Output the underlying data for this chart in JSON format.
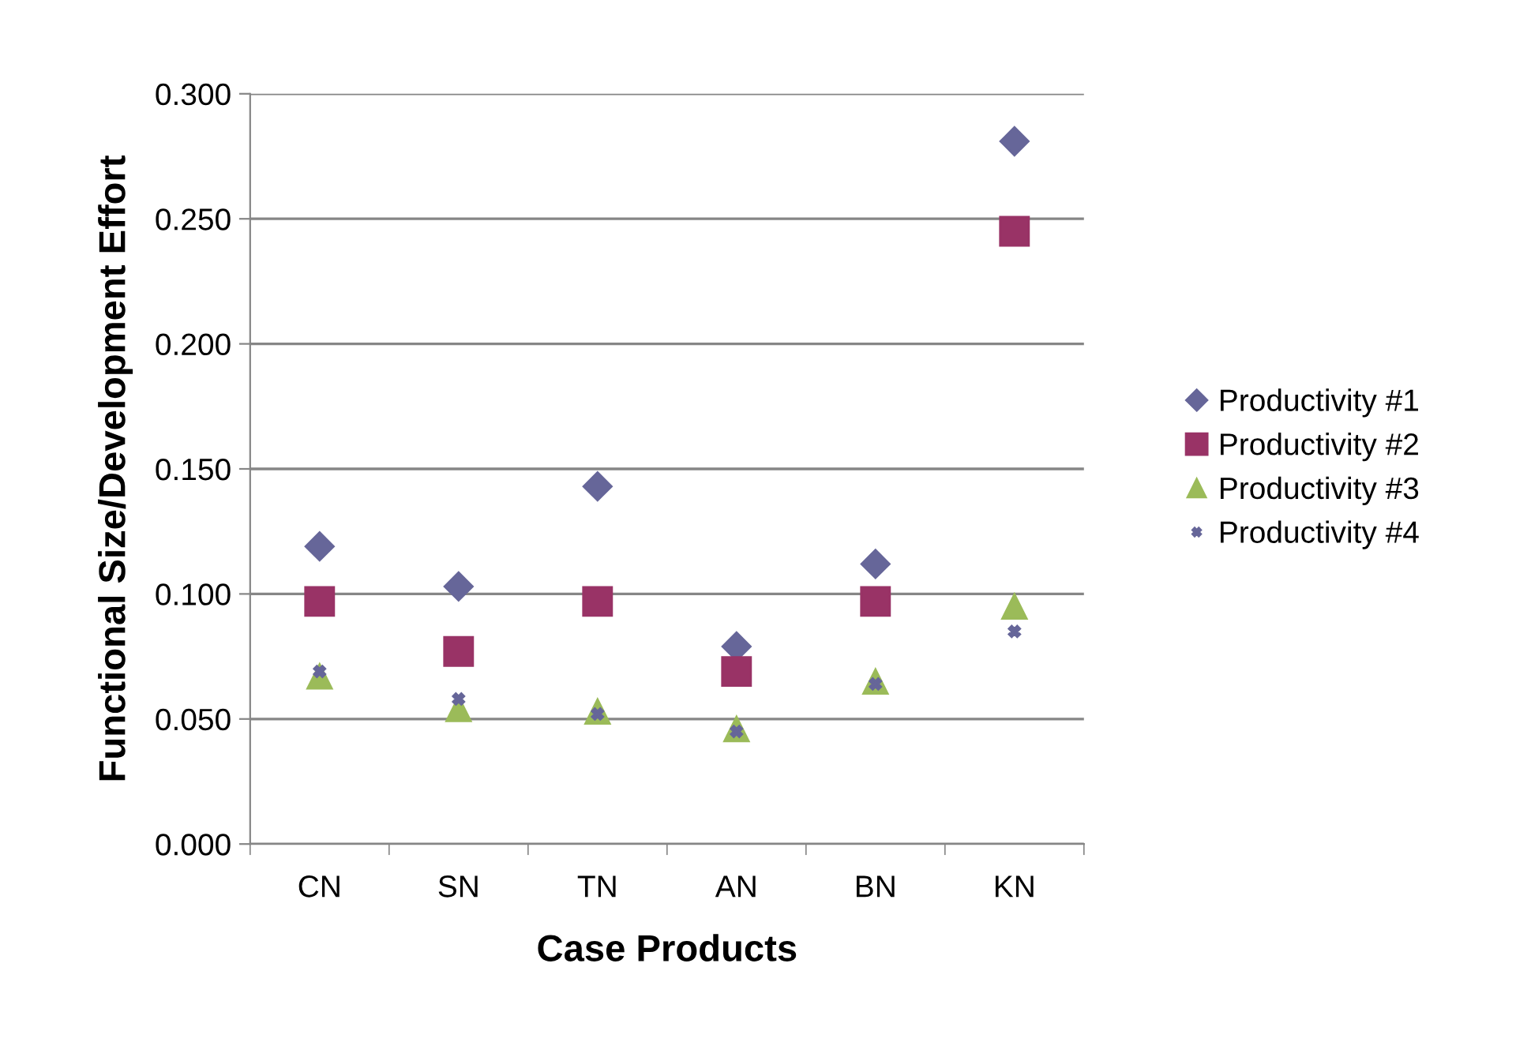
{
  "chart_data": {
    "type": "scatter",
    "xlabel": "Case Products",
    "ylabel": "Functional Size/Development Effort",
    "categories": [
      "CN",
      "SN",
      "TN",
      "AN",
      "BN",
      "KN"
    ],
    "series": [
      {
        "name": "Productivity #1",
        "color": "#666699",
        "marker": "diamond",
        "values": [
          0.119,
          0.103,
          0.143,
          0.079,
          0.112,
          0.281
        ]
      },
      {
        "name": "Productivity #2",
        "color": "#993366",
        "marker": "square",
        "values": [
          0.097,
          0.077,
          0.097,
          0.069,
          0.097,
          0.245
        ]
      },
      {
        "name": "Productivity #3",
        "color": "#9bbb59",
        "marker": "triangle",
        "values": [
          0.067,
          0.054,
          0.053,
          0.046,
          0.065,
          0.095
        ]
      },
      {
        "name": "Productivity #4",
        "color": "#666699",
        "marker": "cross",
        "values": [
          0.069,
          0.058,
          0.052,
          0.045,
          0.064,
          0.085
        ]
      }
    ],
    "ylim": [
      0,
      0.3
    ],
    "yticks": [
      {
        "value": 0,
        "label": "0.000"
      },
      {
        "value": 0.05,
        "label": "0.050"
      },
      {
        "value": 0.1,
        "label": "0.100"
      },
      {
        "value": 0.15,
        "label": "0.150"
      },
      {
        "value": 0.2,
        "label": "0.200"
      },
      {
        "value": 0.25,
        "label": "0.250"
      },
      {
        "value": 0.3,
        "label": "0.300"
      }
    ],
    "grid": "y",
    "legend": "right"
  }
}
